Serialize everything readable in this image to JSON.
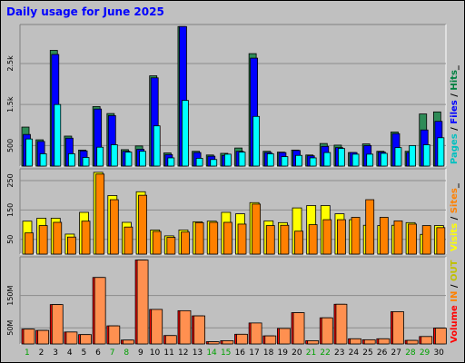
{
  "title": "Daily usage for June 2025",
  "chart_data": [
    {
      "type": "bar",
      "name": "hits-files-pages",
      "legend": [
        "Pages",
        "Files",
        "Hits"
      ],
      "legend_colors": {
        "Pages": "#00c0c0",
        "Files": "#0000ff",
        "Hits": "#008040"
      },
      "y_ticks": [
        "500",
        "1.5k",
        "2.5k"
      ],
      "y_tick_values": [
        500,
        1500,
        2500
      ],
      "ylim": [
        0,
        3450
      ],
      "series": [
        {
          "name": "Hits",
          "color": "#2e8b57",
          "values": [
            950,
            640,
            2820,
            730,
            390,
            1450,
            1280,
            400,
            490,
            2200,
            320,
            3400,
            360,
            270,
            310,
            440,
            2740,
            360,
            340,
            390,
            270,
            550,
            510,
            330,
            540,
            360,
            830,
            360,
            1270,
            1320
          ]
        },
        {
          "name": "Files",
          "color": "#0000ff",
          "values": [
            770,
            600,
            2720,
            680,
            370,
            1390,
            1230,
            360,
            410,
            2150,
            280,
            3400,
            330,
            240,
            260,
            360,
            2630,
            330,
            330,
            380,
            250,
            480,
            450,
            330,
            500,
            340,
            790,
            330,
            880,
            1090
          ]
        },
        {
          "name": "Pages",
          "color": "#00ffff",
          "values": [
            660,
            300,
            1500,
            300,
            210,
            460,
            520,
            340,
            360,
            980,
            200,
            1600,
            190,
            160,
            290,
            340,
            1210,
            300,
            230,
            260,
            200,
            330,
            430,
            290,
            290,
            310,
            450,
            500,
            520,
            690
          ]
        }
      ]
    },
    {
      "type": "bar",
      "name": "visits-sites",
      "legend": [
        "Visits",
        "Sites"
      ],
      "legend_colors": {
        "Visits": "#ffff00",
        "Sites": "#ff8000"
      },
      "y_ticks": [
        "50",
        "150",
        "250"
      ],
      "y_tick_values": [
        50,
        150,
        250
      ],
      "ylim": [
        0,
        290
      ],
      "series": [
        {
          "name": "Visits",
          "color": "#ffff00",
          "values": [
            112,
            122,
            122,
            68,
            142,
            278,
            199,
            108,
            212,
            82,
            62,
            82,
            110,
            112,
            142,
            137,
            175,
            113,
            107,
            157,
            165,
            165,
            137,
            117,
            98,
            97,
            98,
            107,
            67,
            97
          ]
        },
        {
          "name": "Sites",
          "color": "#ff8000",
          "values": [
            72,
            97,
            108,
            58,
            112,
            272,
            185,
            92,
            200,
            77,
            57,
            75,
            107,
            108,
            108,
            102,
            170,
            97,
            98,
            78,
            100,
            117,
            117,
            125,
            185,
            125,
            113,
            102,
            97,
            90
          ]
        }
      ]
    },
    {
      "type": "bar",
      "name": "volume",
      "legend": [
        "Volume",
        "IN",
        "OUT"
      ],
      "legend_colors": {
        "Volume": "#ff0000",
        "IN": "#ff8000",
        "OUT": "#c0c000"
      },
      "y_ticks": [
        "50M",
        "150M"
      ],
      "y_tick_values": [
        50,
        150
      ],
      "ylim": [
        0,
        270
      ],
      "series": [
        {
          "name": "Volume",
          "color": "#ff0000",
          "values": [
            46,
            42,
            122,
            37,
            29,
            206,
            56,
            12,
            260,
            107,
            26,
            103,
            87,
            7,
            10,
            30,
            65,
            25,
            48,
            97,
            10,
            81,
            123,
            16,
            13,
            16,
            100,
            11,
            23,
            49
          ]
        },
        {
          "name": "OUT",
          "color": "#ff9050",
          "values": [
            46,
            42,
            122,
            37,
            29,
            206,
            56,
            12,
            260,
            107,
            26,
            103,
            87,
            7,
            10,
            30,
            65,
            25,
            48,
            97,
            10,
            81,
            123,
            16,
            13,
            16,
            100,
            11,
            23,
            49
          ]
        }
      ]
    }
  ],
  "x_labels": [
    "1",
    "2",
    "3",
    "4",
    "5",
    "6",
    "7",
    "8",
    "9",
    "10",
    "11",
    "12",
    "13",
    "14",
    "15",
    "16",
    "17",
    "18",
    "19",
    "20",
    "21",
    "22",
    "23",
    "24",
    "25",
    "26",
    "27",
    "28",
    "29",
    "30"
  ],
  "weekend_days": [
    1,
    7,
    8,
    14,
    15,
    21,
    22,
    28,
    29
  ],
  "colors": {
    "weekday_label": "#000000",
    "weekend_label": "#00a000",
    "background": "#c0c0c0",
    "grid": "#808080"
  }
}
